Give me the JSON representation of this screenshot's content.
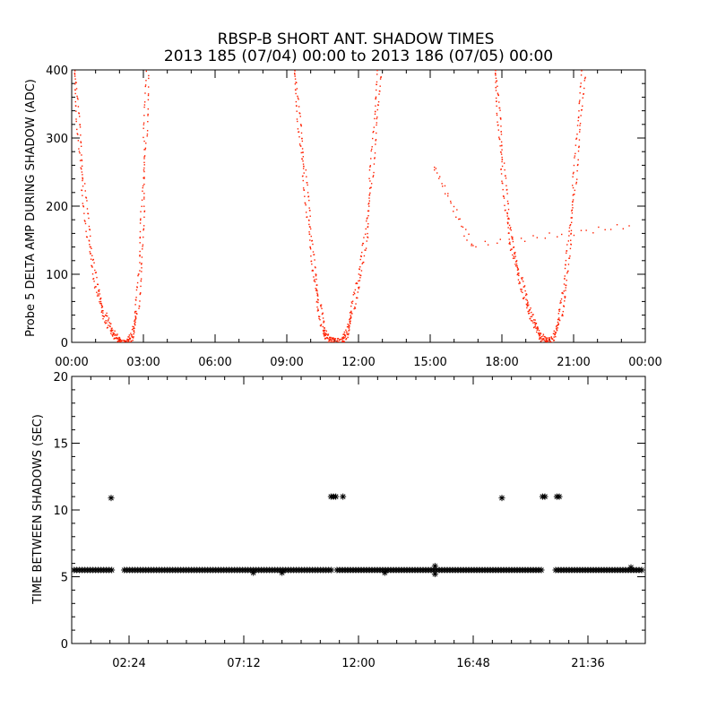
{
  "figure": {
    "title_line1": "RBSP-B SHORT ANT. SHADOW TIMES",
    "title_line2": "2013 185 (07/04) 00:00 to 2013 186 (07/05) 00:00"
  },
  "chart_data": [
    {
      "type": "scatter",
      "ylabel": "Probe 5 DELTA AMP DURING SHADOW (ADC)",
      "xlabel": "",
      "x_unit": "hours since 2013-07-04 00:00",
      "xlim": [
        0,
        24
      ],
      "ylim": [
        0,
        400
      ],
      "x_tick_labels": [
        "00:00",
        "03:00",
        "06:00",
        "09:00",
        "12:00",
        "15:00",
        "18:00",
        "21:00",
        "00:00"
      ],
      "y_tick_labels": [
        "0",
        "100",
        "200",
        "300",
        "400"
      ],
      "marker": "dot",
      "color": "#ff2000",
      "series": [
        {
          "points": [
            [
              0.1,
              400
            ],
            [
              0.25,
              320
            ],
            [
              0.45,
              230
            ],
            [
              0.7,
              150
            ],
            [
              1.0,
              85
            ],
            [
              1.3,
              45
            ],
            [
              1.6,
              20
            ],
            [
              1.9,
              5
            ],
            [
              2.05,
              0
            ],
            [
              2.3,
              0
            ],
            [
              2.5,
              10
            ],
            [
              2.7,
              45
            ],
            [
              2.85,
              110
            ],
            [
              2.95,
              200
            ],
            [
              3.05,
              300
            ],
            [
              3.15,
              400
            ]
          ]
        },
        {
          "points": [
            [
              9.3,
              400
            ],
            [
              9.5,
              320
            ],
            [
              9.7,
              250
            ],
            [
              9.9,
              180
            ],
            [
              10.1,
              110
            ],
            [
              10.3,
              60
            ],
            [
              10.5,
              20
            ],
            [
              10.7,
              5
            ],
            [
              11.0,
              3
            ],
            [
              11.3,
              2
            ],
            [
              11.5,
              15
            ],
            [
              11.7,
              45
            ],
            [
              12.0,
              95
            ],
            [
              12.3,
              160
            ],
            [
              12.5,
              240
            ],
            [
              12.7,
              330
            ],
            [
              12.85,
              400
            ]
          ]
        },
        {
          "points": [
            [
              17.7,
              400
            ],
            [
              17.85,
              330
            ],
            [
              18.0,
              260
            ],
            [
              18.2,
              190
            ],
            [
              18.4,
              140
            ],
            [
              18.7,
              100
            ],
            [
              19.0,
              60
            ],
            [
              19.3,
              30
            ],
            [
              19.6,
              10
            ],
            [
              19.8,
              2
            ],
            [
              20.1,
              5
            ],
            [
              20.4,
              35
            ],
            [
              20.6,
              80
            ],
            [
              20.8,
              150
            ],
            [
              21.0,
              230
            ],
            [
              21.2,
              320
            ],
            [
              21.4,
              400
            ]
          ]
        },
        {
          "points": [
            [
              15.15,
              258
            ],
            [
              16.7,
              143
            ],
            [
              23.3,
              172
            ]
          ]
        }
      ]
    },
    {
      "type": "scatter",
      "ylabel": "TIME BETWEEN SHADOWS (SEC)",
      "xlabel": "",
      "x_unit": "hours since 2013-07-04 00:00",
      "xlim": [
        0,
        24
      ],
      "ylim": [
        0,
        20
      ],
      "x_tick_labels": [
        "02:24",
        "07:12",
        "12:00",
        "16:48",
        "21:36"
      ],
      "y_tick_labels": [
        "0",
        "5",
        "10",
        "15",
        "20"
      ],
      "marker": "asterisk",
      "color": "#000000",
      "baseline": {
        "y": 5.5,
        "x_ranges": [
          [
            0.1,
            1.75
          ],
          [
            2.2,
            10.9
          ],
          [
            11.1,
            19.75
          ],
          [
            20.25,
            23.85
          ]
        ]
      },
      "series": [
        {
          "points": [
            [
              1.65,
              10.9
            ],
            [
              10.85,
              11.0
            ],
            [
              10.95,
              11.0
            ],
            [
              11.05,
              11.0
            ],
            [
              11.35,
              11.0
            ],
            [
              18.0,
              10.9
            ],
            [
              19.7,
              11.0
            ],
            [
              19.8,
              11.0
            ],
            [
              20.3,
              11.0
            ],
            [
              20.4,
              11.0
            ]
          ]
        },
        {
          "points": [
            [
              7.6,
              5.3
            ],
            [
              8.8,
              5.3
            ],
            [
              13.1,
              5.3
            ],
            [
              15.2,
              5.2
            ],
            [
              15.2,
              5.8
            ],
            [
              23.4,
              5.7
            ]
          ]
        }
      ]
    }
  ]
}
